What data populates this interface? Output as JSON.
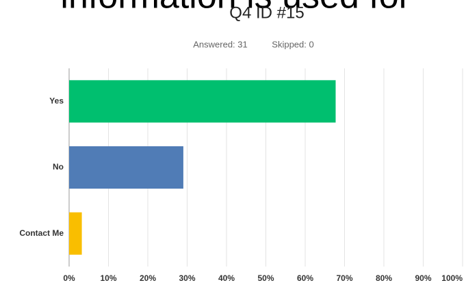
{
  "chart_data": {
    "type": "bar",
    "orientation": "horizontal",
    "header_fragment": "information is used for",
    "title": "Q4 ID #15",
    "answered": "Answered: 31",
    "skipped": "Skipped: 0",
    "categories": [
      "Yes",
      "No",
      "Contact Me"
    ],
    "values": [
      67.74,
      29.03,
      3.23
    ],
    "colors": [
      "#00bf6f",
      "#507cb6",
      "#f9be00"
    ],
    "xlim": [
      0,
      100
    ],
    "xticks": [
      {
        "value": 0,
        "label": "0%"
      },
      {
        "value": 10,
        "label": "10%"
      },
      {
        "value": 20,
        "label": "20%"
      },
      {
        "value": 30,
        "label": "30%"
      },
      {
        "value": 40,
        "label": "40%"
      },
      {
        "value": 50,
        "label": "50%"
      },
      {
        "value": 60,
        "label": "60%"
      },
      {
        "value": 70,
        "label": "70%"
      },
      {
        "value": 80,
        "label": "80%"
      },
      {
        "value": 90,
        "label": "90%"
      },
      {
        "value": 100,
        "label": "100%"
      }
    ],
    "grid": true
  }
}
